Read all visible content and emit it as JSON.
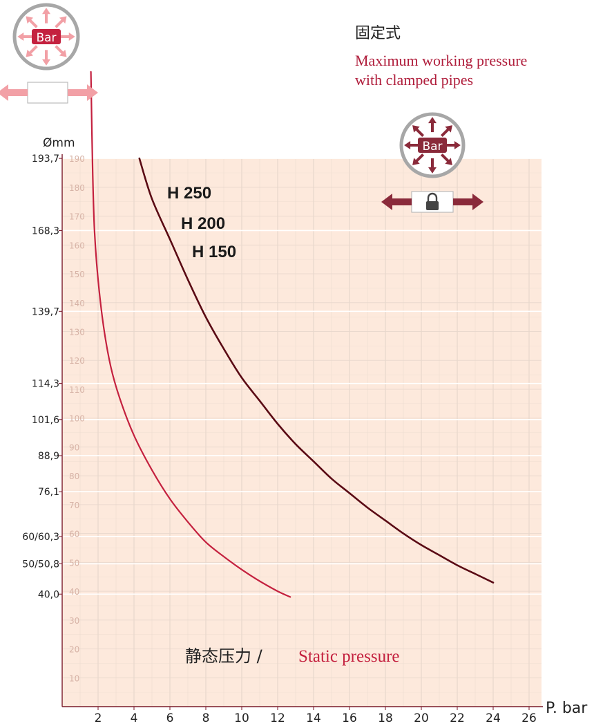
{
  "header": {
    "title_cn": "固定式",
    "subtitle_line1": "Maximum working pressure",
    "subtitle_line2": "with clamped pipes"
  },
  "icons": {
    "badge_label": "Bar",
    "lock": "lock-icon",
    "arrow": "arrow-icon"
  },
  "colors": {
    "background_grid": "#fde9dc",
    "grid_major": "#ffffff",
    "grid_minor": "#e7d7cc",
    "series_free": "#c4213f",
    "series_clamped": "#5a0a14",
    "badge_ring": "#a7a7a7",
    "arrow_red": "#f2a0a6",
    "arrow_dark": "#8a2a3a"
  },
  "chart_data": {
    "type": "line",
    "ylabel": "Ømm",
    "xlabel_cn": "静态压力 /",
    "xlabel_en": "Static pressure",
    "x_unit_label": "P. bar",
    "xlim": [
      0,
      27
    ],
    "ylim": [
      0,
      190
    ],
    "x_ticks": [
      2,
      4,
      6,
      8,
      10,
      12,
      14,
      16,
      18,
      20,
      22,
      24,
      26
    ],
    "y_inner_ticks": [
      10,
      20,
      30,
      40,
      50,
      60,
      70,
      80,
      90,
      100,
      110,
      120,
      130,
      140,
      150,
      160,
      170,
      180,
      190
    ],
    "y_pipe_ticks": [
      {
        "label": "193,7",
        "value": 190
      },
      {
        "label": "168,3",
        "value": 165
      },
      {
        "label": "139,7",
        "value": 137
      },
      {
        "label": "114,3",
        "value": 112
      },
      {
        "label": "101,6",
        "value": 99.5
      },
      {
        "label": "88,9",
        "value": 87
      },
      {
        "label": "76,1",
        "value": 74.5
      },
      {
        "label": "60/60,3",
        "value": 59
      },
      {
        "label": "50/50,8",
        "value": 49.5
      },
      {
        "label": "40,0",
        "value": 39
      }
    ],
    "series_labels": [
      "H 250",
      "H 200",
      "H 150"
    ],
    "series": [
      {
        "x": [
          1.6,
          1.7,
          1.8,
          2.0,
          2.3,
          2.7,
          3.2,
          4.0,
          5.0,
          6.0,
          7.0,
          8.0,
          9.0,
          10.0,
          11.0,
          12.0,
          12.7
        ],
        "y": [
          220,
          185,
          165,
          148,
          132,
          118,
          107,
          94,
          82,
          72,
          64,
          57,
          52,
          47.5,
          43.5,
          40,
          38
        ]
      },
      {
        "x": [
          4.3,
          5.0,
          6.0,
          7.0,
          8.0,
          9.0,
          10.0,
          11.0,
          12.0,
          13.0,
          14.0,
          15.0,
          16.0,
          17.0,
          18.0,
          19.0,
          20.0,
          21.0,
          22.0,
          23.0,
          24.0
        ],
        "y": [
          190,
          176,
          162,
          148,
          135,
          124,
          114,
          106,
          98,
          91,
          85,
          79,
          74,
          69,
          64.5,
          60,
          56,
          52.5,
          49,
          46,
          43
        ]
      }
    ]
  }
}
